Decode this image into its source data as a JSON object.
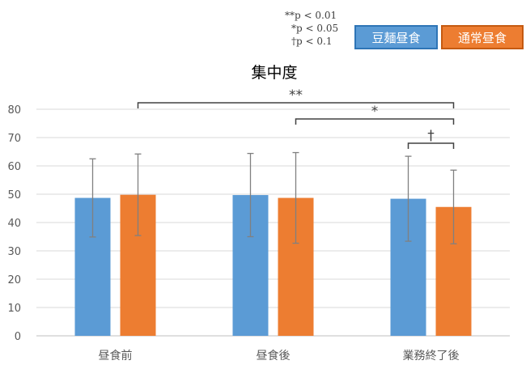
{
  "significance_notes": [
    "**p < 0.01",
    "*p < 0.05",
    "†p < 0.1"
  ],
  "legend": [
    {
      "label": "豆麺昼食",
      "color": "#5b9bd5"
    },
    {
      "label": "通常昼食",
      "color": "#ed7d31"
    }
  ],
  "chart_data": {
    "type": "bar",
    "title": "集中度",
    "categories": [
      "昼食前",
      "昼食後",
      "業務終了後"
    ],
    "series": [
      {
        "name": "豆麺昼食",
        "color": "#5b9bd5",
        "values": [
          48.7,
          49.7,
          48.4
        ],
        "error": [
          13.8,
          14.7,
          15.0
        ]
      },
      {
        "name": "通常昼食",
        "color": "#ed7d31",
        "values": [
          49.8,
          48.7,
          45.5
        ],
        "error": [
          14.4,
          16.0,
          13.0
        ]
      }
    ],
    "ylim": [
      0,
      80
    ],
    "yticks": [
      0,
      10,
      20,
      30,
      40,
      50,
      60,
      70,
      80
    ],
    "grid": true,
    "significance": [
      {
        "label": "**",
        "from": {
          "series": 1,
          "category": 0
        },
        "to": {
          "series": 1,
          "category": 2
        }
      },
      {
        "label": "*",
        "from": {
          "series": 1,
          "category": 1
        },
        "to": {
          "series": 1,
          "category": 2
        }
      },
      {
        "label": "†",
        "from": {
          "series": 0,
          "category": 2
        },
        "to": {
          "series": 1,
          "category": 2
        }
      }
    ]
  }
}
